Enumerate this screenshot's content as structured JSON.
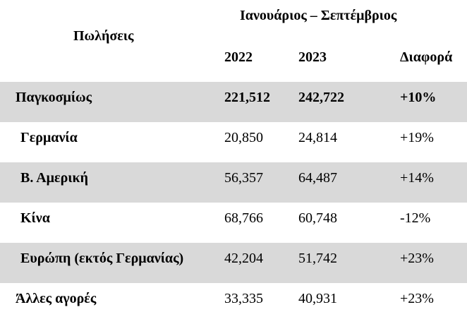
{
  "header": {
    "row_label": "Πωλήσεις",
    "period": "Ιανουάριος – Σεπτέμβριος",
    "columns": [
      "2022",
      "2023",
      "Διαφορά"
    ]
  },
  "rows": [
    {
      "name": "Παγκοσμίως",
      "y2022": "221,512",
      "y2023": "242,722",
      "diff": "+10%",
      "shaded": true,
      "bold": true
    },
    {
      "name": "Γερμανία",
      "y2022": "20,850",
      "y2023": "24,814",
      "diff": "+19%",
      "shaded": false,
      "bold": false
    },
    {
      "name": "Β. Αμερική",
      "y2022": "56,357",
      "y2023": "64,487",
      "diff": "+14%",
      "shaded": true,
      "bold": false
    },
    {
      "name": "Κίνα",
      "y2022": "68,766",
      "y2023": "60,748",
      "diff": "-12%",
      "shaded": false,
      "bold": false
    },
    {
      "name": "Ευρώπη (εκτός Γερμανίας)",
      "y2022": "42,204",
      "y2023": "51,742",
      "diff": "+23%",
      "shaded": true,
      "bold": false
    },
    {
      "name": "Άλλες αγορές",
      "y2022": "33,335",
      "y2023": "40,931",
      "diff": "+23%",
      "shaded": false,
      "bold": false
    }
  ],
  "colors": {
    "shade": "#d9d9d9",
    "text": "#000000"
  }
}
